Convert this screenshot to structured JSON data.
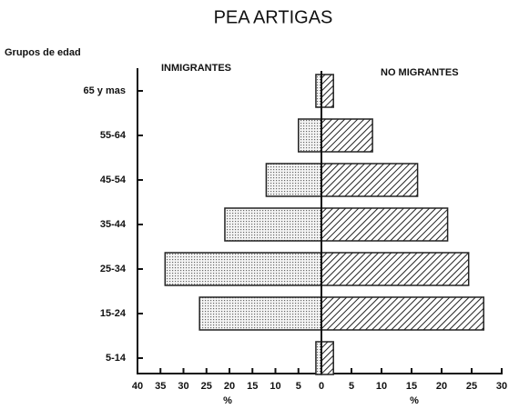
{
  "chart_data": {
    "type": "pyramid",
    "title": "PEA ARTIGAS",
    "ylabel": "Grupos de edad",
    "categories": [
      "65 y mas",
      "55-64",
      "45-54",
      "35-44",
      "25-34",
      "15-24",
      "5-14"
    ],
    "series": [
      {
        "name": "INMIGRANTES",
        "side": "left",
        "color": "#c8c8c8",
        "pattern": "dots",
        "values": [
          1.2,
          5,
          12,
          21,
          34,
          26.5,
          1.2
        ],
        "xlim": [
          0,
          40
        ],
        "xticks": [
          40,
          35,
          30,
          25,
          20,
          15,
          10,
          5,
          0
        ],
        "xlabel": "%"
      },
      {
        "name": "NO MIGRANTES",
        "side": "right",
        "color": "#222222",
        "pattern": "hatch",
        "values": [
          2,
          8.5,
          16,
          21,
          24.5,
          27,
          2
        ],
        "xlim": [
          0,
          30
        ],
        "xticks": [
          0,
          5,
          10,
          15,
          20,
          25,
          30
        ],
        "xlabel": "%"
      }
    ]
  }
}
